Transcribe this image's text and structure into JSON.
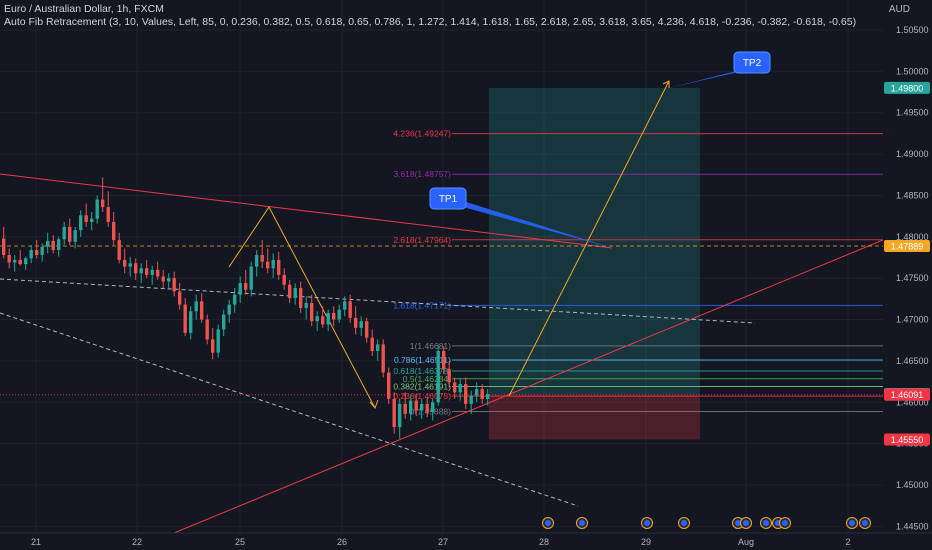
{
  "header": {
    "title": "Euro / Australian Dollar, 1h, FXCM",
    "indicator": "Auto Fib Retracement (3, 10, Values, Left, 85, 0, 0.236, 0.382, 0.5, 0.618, 0.65, 0.786, 1, 1.272, 1.414, 1.618, 1.65, 2.618, 2.65, 3.618, 3.65, 4.236, 4.618, -0.236, -0.382, -0.618, -0.65)"
  },
  "currency": "AUD",
  "colors": {
    "background": "#131722",
    "up": "#26a69a",
    "down": "#ef5350",
    "axis_text": "#b2b5be",
    "callout": "#2962ff",
    "projection": "#f5a623",
    "trendline": "#f23645"
  },
  "chart_data": {
    "type": "candlestick",
    "title": "Euro / Australian Dollar, 1h, FXCM",
    "y_axis": {
      "range": [
        1.4433,
        1.505
      ],
      "ticks": [
        "1.50500",
        "1.50000",
        "1.49500",
        "1.49000",
        "1.48500",
        "1.48000",
        "1.47500",
        "1.47000",
        "1.46500",
        "1.46000",
        "1.45500",
        "1.45000",
        "1.44500"
      ]
    },
    "x_axis": {
      "ticks": [
        "21",
        "22",
        "25",
        "26",
        "27",
        "28",
        "29",
        "Aug",
        "2"
      ]
    },
    "price_badges": [
      {
        "label": "1.49800",
        "value": 1.498,
        "color": "#26a69a"
      },
      {
        "label": "1.47889",
        "value": 1.47889,
        "color": "#f5a623"
      },
      {
        "label": "1.46100",
        "value": 1.461,
        "color": "#787b86"
      },
      {
        "label": "1.46091",
        "value": 1.46091,
        "color": "#f23645"
      },
      {
        "label": "1.45550",
        "value": 1.4555,
        "color": "#f23645"
      }
    ],
    "fib_levels": [
      {
        "label": "4.236(1.49247)",
        "value": 1.49247,
        "color": "#f23645"
      },
      {
        "label": "3.618(1.48757)",
        "value": 1.48757,
        "color": "#9c27b0"
      },
      {
        "label": "2.618(1.47964)",
        "value": 1.47964,
        "color": "#f23645"
      },
      {
        "label": "1.618(1.47171)",
        "value": 1.47171,
        "color": "#2962ff"
      },
      {
        "label": "1(1.46681)",
        "value": 1.46681,
        "color": "#787b86"
      },
      {
        "label": "0.786(1.46511)",
        "value": 1.46511,
        "color": "#64b5f6"
      },
      {
        "label": "0.618(1.46378)",
        "value": 1.46378,
        "color": "#26a69a"
      },
      {
        "label": "0.5(1.46284)",
        "value": 1.46284,
        "color": "#4caf50"
      },
      {
        "label": "0.382(1.46191)",
        "value": 1.46191,
        "color": "#81c784"
      },
      {
        "label": "0.236(1.46075)",
        "value": 1.46075,
        "color": "#f23645"
      },
      {
        "label": "0(1.45888)",
        "value": 1.45888,
        "color": "#787b86"
      }
    ],
    "position": {
      "entry": 1.46091,
      "target": 1.498,
      "stop": 1.4555
    },
    "annotations": [
      {
        "label": "TP1",
        "value": 1.47889
      },
      {
        "label": "TP2",
        "value": 1.498
      }
    ],
    "candles": [
      [
        1.4798,
        1.4812,
        1.4774,
        1.4778
      ],
      [
        1.4778,
        1.4786,
        1.4762,
        1.4769
      ],
      [
        1.4769,
        1.4778,
        1.4758,
        1.4772
      ],
      [
        1.4772,
        1.4784,
        1.4765,
        1.4767
      ],
      [
        1.4767,
        1.4776,
        1.476,
        1.4774
      ],
      [
        1.4774,
        1.479,
        1.4768,
        1.4784
      ],
      [
        1.4784,
        1.4796,
        1.4774,
        1.4778
      ],
      [
        1.4778,
        1.4792,
        1.477,
        1.4788
      ],
      [
        1.4788,
        1.4805,
        1.478,
        1.4795
      ],
      [
        1.4795,
        1.4802,
        1.478,
        1.4784
      ],
      [
        1.4784,
        1.48,
        1.4776,
        1.4797
      ],
      [
        1.4797,
        1.4818,
        1.479,
        1.4812
      ],
      [
        1.4812,
        1.4822,
        1.479,
        1.4794
      ],
      [
        1.4794,
        1.4812,
        1.4786,
        1.4808
      ],
      [
        1.4808,
        1.4832,
        1.48,
        1.4826
      ],
      [
        1.4826,
        1.484,
        1.4812,
        1.4818
      ],
      [
        1.4818,
        1.483,
        1.4808,
        1.4822
      ],
      [
        1.4822,
        1.485,
        1.4816,
        1.4845
      ],
      [
        1.4845,
        1.4872,
        1.483,
        1.4836
      ],
      [
        1.4836,
        1.4855,
        1.4812,
        1.4818
      ],
      [
        1.4818,
        1.483,
        1.479,
        1.4796
      ],
      [
        1.4796,
        1.4805,
        1.4768,
        1.4772
      ],
      [
        1.4772,
        1.4786,
        1.4756,
        1.4764
      ],
      [
        1.4764,
        1.4776,
        1.4752,
        1.4768
      ],
      [
        1.4768,
        1.4774,
        1.4748,
        1.4756
      ],
      [
        1.4756,
        1.4768,
        1.4744,
        1.4762
      ],
      [
        1.4762,
        1.4772,
        1.475,
        1.4754
      ],
      [
        1.4754,
        1.4765,
        1.4742,
        1.476
      ],
      [
        1.476,
        1.477,
        1.4748,
        1.4752
      ],
      [
        1.4752,
        1.476,
        1.4738,
        1.4746
      ],
      [
        1.4746,
        1.4756,
        1.4736,
        1.475
      ],
      [
        1.475,
        1.4758,
        1.4728,
        1.4734
      ],
      [
        1.4734,
        1.4744,
        1.4712,
        1.4718
      ],
      [
        1.4718,
        1.4726,
        1.468,
        1.4684
      ],
      [
        1.4684,
        1.4716,
        1.4676,
        1.471
      ],
      [
        1.471,
        1.473,
        1.47,
        1.4722
      ],
      [
        1.4722,
        1.4732,
        1.4696,
        1.47
      ],
      [
        1.47,
        1.4706,
        1.467,
        1.4676
      ],
      [
        1.4676,
        1.469,
        1.4652,
        1.466
      ],
      [
        1.466,
        1.4694,
        1.4654,
        1.4688
      ],
      [
        1.4688,
        1.4712,
        1.468,
        1.4706
      ],
      [
        1.4706,
        1.4724,
        1.4696,
        1.4718
      ],
      [
        1.4718,
        1.4738,
        1.4708,
        1.473
      ],
      [
        1.473,
        1.4752,
        1.472,
        1.4744
      ],
      [
        1.4744,
        1.476,
        1.473,
        1.4736
      ],
      [
        1.4736,
        1.477,
        1.4728,
        1.4764
      ],
      [
        1.4764,
        1.4784,
        1.4752,
        1.4778
      ],
      [
        1.4778,
        1.4796,
        1.4762,
        1.477
      ],
      [
        1.477,
        1.4786,
        1.4756,
        1.4762
      ],
      [
        1.4762,
        1.478,
        1.475,
        1.4772
      ],
      [
        1.4772,
        1.4782,
        1.4748,
        1.4754
      ],
      [
        1.4754,
        1.4762,
        1.4736,
        1.4742
      ],
      [
        1.4742,
        1.4748,
        1.472,
        1.4726
      ],
      [
        1.4726,
        1.4744,
        1.4718,
        1.4738
      ],
      [
        1.4738,
        1.4746,
        1.4708,
        1.4714
      ],
      [
        1.4714,
        1.4728,
        1.47,
        1.472
      ],
      [
        1.472,
        1.473,
        1.4692,
        1.4698
      ],
      [
        1.4698,
        1.471,
        1.4686,
        1.4704
      ],
      [
        1.4704,
        1.4716,
        1.469,
        1.4694
      ],
      [
        1.4694,
        1.4712,
        1.4686,
        1.4708
      ],
      [
        1.4708,
        1.4716,
        1.4692,
        1.47
      ],
      [
        1.47,
        1.4718,
        1.4696,
        1.4712
      ],
      [
        1.4712,
        1.4728,
        1.4704,
        1.4722
      ],
      [
        1.4722,
        1.473,
        1.4696,
        1.4702
      ],
      [
        1.4702,
        1.4716,
        1.4682,
        1.469
      ],
      [
        1.469,
        1.4704,
        1.468,
        1.4698
      ],
      [
        1.4698,
        1.4702,
        1.4672,
        1.4678
      ],
      [
        1.4678,
        1.4688,
        1.4656,
        1.4662
      ],
      [
        1.4662,
        1.4676,
        1.465,
        1.467
      ],
      [
        1.467,
        1.4676,
        1.463,
        1.4636
      ],
      [
        1.4636,
        1.4642,
        1.4598,
        1.4604
      ],
      [
        1.4604,
        1.4612,
        1.4562,
        1.457
      ],
      [
        1.457,
        1.4604,
        1.4556,
        1.4598
      ],
      [
        1.4598,
        1.4612,
        1.458,
        1.4586
      ],
      [
        1.4586,
        1.4608,
        1.4578,
        1.4602
      ],
      [
        1.4602,
        1.461,
        1.4584,
        1.459
      ],
      [
        1.459,
        1.4604,
        1.458,
        1.4598
      ],
      [
        1.4598,
        1.4606,
        1.4582,
        1.4588
      ],
      [
        1.4588,
        1.4604,
        1.4578,
        1.46
      ],
      [
        1.46,
        1.467,
        1.4596,
        1.4662
      ],
      [
        1.4662,
        1.4668,
        1.4634,
        1.464
      ],
      [
        1.464,
        1.465,
        1.4618,
        1.4624
      ],
      [
        1.4624,
        1.463,
        1.4604,
        1.4612
      ],
      [
        1.4612,
        1.4628,
        1.4602,
        1.4622
      ],
      [
        1.4622,
        1.463,
        1.4592,
        1.4598
      ],
      [
        1.4598,
        1.4614,
        1.4586,
        1.4608
      ],
      [
        1.4608,
        1.4624,
        1.46,
        1.4616
      ],
      [
        1.4616,
        1.4622,
        1.4598,
        1.4604
      ],
      [
        1.4604,
        1.4616,
        1.4596,
        1.461
      ]
    ]
  }
}
